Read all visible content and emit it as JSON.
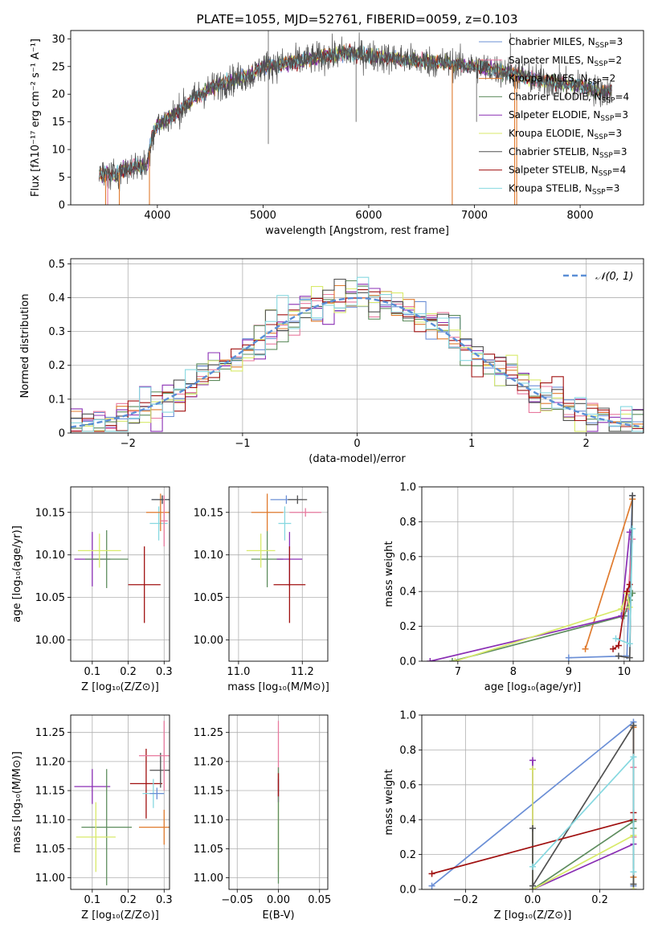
{
  "colors": {
    "chabrier_miles": "#6b8fd6",
    "salpeter_miles": "#e8799e",
    "kroupa_miles": "#e07b2e",
    "chabrier_elodie": "#5e8d5e",
    "salpeter_elodie": "#8a2fb4",
    "kroupa_elodie": "#d8ea6a",
    "chabrier_stelib": "#505050",
    "salpeter_stelib": "#a01010",
    "kroupa_stelib": "#86d8e0",
    "normal": "#5b8fd6",
    "grid": "#b0b0b0"
  },
  "chart_data": [
    {
      "id": "spectrum",
      "type": "line",
      "title": "PLATE=1055, MJD=52761, FIBERID=0059, z=0.103",
      "xlabel": "wavelength [Angstrom, rest frame]",
      "ylabel": "Flux [fλ10⁻¹⁷ erg cm⁻² s⁻¹ A⁻¹]",
      "xlim": [
        3180,
        8600
      ],
      "ylim": [
        0,
        31.5
      ],
      "xticks": [
        4000,
        5000,
        6000,
        7000,
        8000
      ],
      "yticks": [
        0,
        5,
        10,
        15,
        20,
        25,
        30
      ],
      "grid": false,
      "legend_position": "upper right",
      "legend": [
        {
          "label": "Chabrier MILES, N",
          "sub": "SSP",
          "tail": "=3",
          "color_key": "chabrier_miles"
        },
        {
          "label": "Salpeter MILES, N",
          "sub": "SSP",
          "tail": "=2",
          "color_key": "salpeter_miles"
        },
        {
          "label": "Kroupa MILES, N",
          "sub": "SSP",
          "tail": "=2",
          "color_key": "kroupa_miles"
        },
        {
          "label": "Chabrier ELODIE, N",
          "sub": "SSP",
          "tail": "=4",
          "color_key": "chabrier_elodie"
        },
        {
          "label": "Salpeter ELODIE, N",
          "sub": "SSP",
          "tail": "=3",
          "color_key": "salpeter_elodie"
        },
        {
          "label": "Kroupa ELODIE, N",
          "sub": "SSP",
          "tail": "=3",
          "color_key": "kroupa_elodie"
        },
        {
          "label": "Chabrier STELIB, N",
          "sub": "SSP",
          "tail": "=3",
          "color_key": "chabrier_stelib"
        },
        {
          "label": "Salpeter STELIB, N",
          "sub": "SSP",
          "tail": "=4",
          "color_key": "salpeter_stelib"
        },
        {
          "label": "Kroupa STELIB, N",
          "sub": "SSP",
          "tail": "=3",
          "color_key": "kroupa_stelib"
        }
      ],
      "continuum": {
        "x": [
          3450,
          3600,
          3700,
          3800,
          3900,
          3950,
          4000,
          4100,
          4200,
          4300,
          4400,
          4500,
          4700,
          4900,
          5000,
          5200,
          5500,
          5800,
          6000,
          6200,
          6500,
          6800,
          7000,
          7200,
          7400,
          7600,
          7800,
          8000,
          8200,
          8300
        ],
        "y": [
          5.5,
          5.5,
          6.5,
          7,
          7,
          12.5,
          14.5,
          15.5,
          17,
          18.5,
          20,
          21,
          22.5,
          23.5,
          25,
          25.5,
          26.5,
          27.5,
          27,
          26.5,
          26,
          25.5,
          25,
          24.5,
          23.5,
          22.5,
          22,
          21.5,
          20.5,
          20.5
        ]
      },
      "noisy_series": "chabrier_stelib",
      "noise_amplitude": 1.4,
      "model_series": [
        "chabrier_miles",
        "salpeter_miles",
        "kroupa_miles",
        "chabrier_elodie",
        "salpeter_elodie",
        "kroupa_elodie",
        "salpeter_stelib",
        "kroupa_stelib"
      ],
      "drops": [
        {
          "x": 3510,
          "series": "kroupa_miles"
        },
        {
          "x": 3530,
          "series": "salpeter_miles"
        },
        {
          "x": 3640,
          "series": "kroupa_miles"
        },
        {
          "x": 3925,
          "series": "kroupa_miles"
        },
        {
          "x": 6790,
          "series": "kroupa_miles"
        },
        {
          "x": 7380,
          "series": "kroupa_miles"
        },
        {
          "x": 7400,
          "series": "kroupa_miles"
        }
      ],
      "spikes": [
        {
          "x": 5050,
          "low": 11,
          "high": 31.5
        },
        {
          "x": 5880,
          "low": 15,
          "high": 28
        },
        {
          "x": 7020,
          "low": 15,
          "high": 26
        },
        {
          "x": 7340,
          "low": 22,
          "high": 31
        }
      ]
    },
    {
      "id": "residual_hist",
      "type": "histogram",
      "xlabel": "(data-model)/error",
      "ylabel": "Normed distribution",
      "xlim": [
        -2.5,
        2.5
      ],
      "ylim": [
        0,
        0.515
      ],
      "xticks": [
        -2,
        -1,
        0,
        1,
        2
      ],
      "yticks": [
        0,
        0.1,
        0.2,
        0.3,
        0.4,
        0.5
      ],
      "grid": true,
      "bin_width": 0.1,
      "bin_start": -2.5,
      "noise_amplitude": 0.04,
      "legend_position": "upper right",
      "legend": [
        {
          "label": "𝒩(0, 1)",
          "color_key": "normal",
          "style": "dashed"
        }
      ],
      "series_keys": [
        "chabrier_miles",
        "salpeter_miles",
        "kroupa_miles",
        "chabrier_elodie",
        "salpeter_elodie",
        "kroupa_elodie",
        "chabrier_stelib",
        "salpeter_stelib",
        "kroupa_stelib"
      ]
    },
    {
      "id": "age_vs_Z",
      "type": "errorbar",
      "xlabel": "Z [log₁₀(Z/Z⊙)]",
      "ylabel": "age  [log₁₀(age/yr)]",
      "xlim": [
        0.04,
        0.315
      ],
      "ylim": [
        9.975,
        10.18
      ],
      "xticks": [
        0.1,
        0.2,
        0.3
      ],
      "xtick_labels": [
        "0.1",
        "0.2",
        "0.3"
      ],
      "yticks": [
        10.0,
        10.05,
        10.1,
        10.15
      ],
      "ytick_labels": [
        "10.00",
        "10.05",
        "10.10",
        "10.15"
      ],
      "grid": true,
      "points": [
        {
          "key": "salpeter_elodie",
          "x": 0.1,
          "y": 10.095,
          "xerr": 0.05,
          "yerr": 0.032
        },
        {
          "key": "chabrier_elodie",
          "x": 0.14,
          "y": 10.095,
          "xerr": 0.06,
          "yerr": 0.034
        },
        {
          "key": "kroupa_elodie",
          "x": 0.12,
          "y": 10.105,
          "xerr": 0.06,
          "yerr": 0.02
        },
        {
          "key": "salpeter_stelib",
          "x": 0.245,
          "y": 10.065,
          "xerr": 0.045,
          "yerr": 0.045
        },
        {
          "key": "kroupa_stelib",
          "x": 0.285,
          "y": 10.137,
          "xerr": 0.025,
          "yerr": 0.02
        },
        {
          "key": "kroupa_miles",
          "x": 0.29,
          "y": 10.15,
          "xerr": 0.04,
          "yerr": 0.022
        },
        {
          "key": "chabrier_miles",
          "x": 0.295,
          "y": 10.165,
          "xerr": 0.03,
          "yerr": 0.005
        },
        {
          "key": "chabrier_stelib",
          "x": 0.295,
          "y": 10.165,
          "xerr": 0.03,
          "yerr": 0.005
        },
        {
          "key": "salpeter_miles",
          "x": 0.3,
          "y": 10.14,
          "xerr": 0.01,
          "yerr": 0.03
        }
      ]
    },
    {
      "id": "age_vs_mass",
      "type": "errorbar",
      "xlabel": "mass [log₁₀(M/M⊙)]",
      "ylabel": "",
      "xlim": [
        10.97,
        11.28
      ],
      "ylim": [
        9.975,
        10.18
      ],
      "xticks": [
        11.0,
        11.2
      ],
      "xtick_labels": [
        "11.0",
        "11.2"
      ],
      "yticks": [
        10.0,
        10.05,
        10.1,
        10.15
      ],
      "ytick_labels": [
        "10.00",
        "10.05",
        "10.10",
        "10.15"
      ],
      "grid": true,
      "points": [
        {
          "key": "chabrier_elodie",
          "x": 11.09,
          "y": 10.095,
          "xerr": 0.05,
          "yerr": 0.033
        },
        {
          "key": "kroupa_elodie",
          "x": 11.07,
          "y": 10.105,
          "xerr": 0.045,
          "yerr": 0.02
        },
        {
          "key": "salpeter_elodie",
          "x": 11.16,
          "y": 10.095,
          "xerr": 0.04,
          "yerr": 0.032
        },
        {
          "key": "salpeter_stelib",
          "x": 11.16,
          "y": 10.065,
          "xerr": 0.05,
          "yerr": 0.045
        },
        {
          "key": "kroupa_stelib",
          "x": 11.145,
          "y": 10.137,
          "xerr": 0.02,
          "yerr": 0.02
        },
        {
          "key": "kroupa_miles",
          "x": 11.09,
          "y": 10.15,
          "xerr": 0.05,
          "yerr": 0.022
        },
        {
          "key": "chabrier_miles",
          "x": 11.15,
          "y": 10.165,
          "xerr": 0.05,
          "yerr": 0.005
        },
        {
          "key": "chabrier_stelib",
          "x": 11.185,
          "y": 10.165,
          "xerr": 0.03,
          "yerr": 0.005
        },
        {
          "key": "salpeter_miles",
          "x": 11.21,
          "y": 10.15,
          "xerr": 0.05,
          "yerr": 0.005
        }
      ]
    },
    {
      "id": "massweight_vs_age",
      "type": "line",
      "xlabel": "age  [log₁₀(age/yr)]",
      "ylabel": "mass weight",
      "xlim": [
        6.35,
        10.35
      ],
      "ylim": [
        0,
        1.0
      ],
      "xticks": [
        7,
        8,
        9,
        10
      ],
      "yticks": [
        0,
        0.2,
        0.4,
        0.6,
        0.8,
        1.0
      ],
      "ytick_labels": [
        "0.0",
        "0.2",
        "0.4",
        "0.6",
        "0.8",
        "1.0"
      ],
      "grid": true,
      "series": [
        {
          "key": "chabrier_miles",
          "x": [
            9.0,
            10.05,
            10.15
          ],
          "y": [
            0.02,
            0.03,
            0.95
          ]
        },
        {
          "key": "salpeter_miles",
          "x": [
            10.05,
            10.15
          ],
          "y": [
            0.3,
            0.7
          ]
        },
        {
          "key": "kroupa_miles",
          "x": [
            9.3,
            10.15
          ],
          "y": [
            0.07,
            0.93
          ]
        },
        {
          "key": "chabrier_elodie",
          "x": [
            6.9,
            10.0,
            10.1,
            10.15
          ],
          "y": [
            0.0,
            0.26,
            0.35,
            0.39
          ]
        },
        {
          "key": "salpeter_elodie",
          "x": [
            6.5,
            9.95,
            10.1
          ],
          "y": [
            0.0,
            0.26,
            0.74
          ]
        },
        {
          "key": "kroupa_elodie",
          "x": [
            6.95,
            9.95,
            10.05,
            10.1
          ],
          "y": [
            0.0,
            0.3,
            0.39,
            0.31
          ]
        },
        {
          "key": "chabrier_stelib",
          "x": [
            9.9,
            10.1,
            10.15
          ],
          "y": [
            0.03,
            0.02,
            0.95
          ]
        },
        {
          "key": "salpeter_stelib",
          "x": [
            9.8,
            9.9,
            10.05,
            10.1
          ],
          "y": [
            0.07,
            0.09,
            0.4,
            0.44
          ]
        },
        {
          "key": "kroupa_stelib",
          "x": [
            9.85,
            10.1,
            10.15
          ],
          "y": [
            0.13,
            0.1,
            0.76
          ]
        }
      ]
    },
    {
      "id": "mass_vs_Z",
      "type": "errorbar",
      "xlabel": "Z [log₁₀(Z/Z⊙)]",
      "ylabel": "mass [log₁₀(M/M⊙)]",
      "xlim": [
        0.04,
        0.315
      ],
      "ylim": [
        10.98,
        11.28
      ],
      "xticks": [
        0.1,
        0.2,
        0.3
      ],
      "xtick_labels": [
        "0.1",
        "0.2",
        "0.3"
      ],
      "yticks": [
        11.0,
        11.05,
        11.1,
        11.15,
        11.2,
        11.25
      ],
      "ytick_labels": [
        "11.00",
        "11.05",
        "11.10",
        "11.15",
        "11.20",
        "11.25"
      ],
      "grid": true,
      "points": [
        {
          "key": "salpeter_elodie",
          "x": 0.1,
          "y": 11.157,
          "xerr": 0.05,
          "yerr": 0.03
        },
        {
          "key": "chabrier_elodie",
          "x": 0.14,
          "y": 11.087,
          "xerr": 0.07,
          "yerr": 0.1
        },
        {
          "key": "kroupa_elodie",
          "x": 0.11,
          "y": 11.07,
          "xerr": 0.055,
          "yerr": 0.06
        },
        {
          "key": "salpeter_stelib",
          "x": 0.25,
          "y": 11.162,
          "xerr": 0.045,
          "yerr": 0.06
        },
        {
          "key": "kroupa_stelib",
          "x": 0.27,
          "y": 11.145,
          "xerr": 0.03,
          "yerr": 0.025
        },
        {
          "key": "chabrier_miles",
          "x": 0.28,
          "y": 11.145,
          "xerr": 0.02,
          "yerr": 0.01
        },
        {
          "key": "chabrier_stelib",
          "x": 0.29,
          "y": 11.185,
          "xerr": 0.03,
          "yerr": 0.03
        },
        {
          "key": "salpeter_miles",
          "x": 0.3,
          "y": 11.21,
          "xerr": 0.07,
          "yerr": 0.06
        },
        {
          "key": "kroupa_miles",
          "x": 0.3,
          "y": 11.087,
          "xerr": 0.07,
          "yerr": 0.03
        }
      ]
    },
    {
      "id": "mass_vs_ebv",
      "type": "errorbar",
      "xlabel": "E(B-V)",
      "ylabel": "",
      "xlim": [
        -0.06,
        0.06
      ],
      "ylim": [
        10.98,
        11.28
      ],
      "xticks": [
        -0.05,
        0.0,
        0.05
      ],
      "xtick_labels": [
        "−0.05",
        "0.00",
        "0.05"
      ],
      "yticks": [
        11.0,
        11.05,
        11.1,
        11.15,
        11.2,
        11.25
      ],
      "ytick_labels": [
        "11.00",
        "11.05",
        "11.10",
        "11.15",
        "11.20",
        "11.25"
      ],
      "grid": true,
      "points": [
        {
          "key": "salpeter_miles",
          "x": 0.0,
          "y": 11.2,
          "xerr": 0,
          "yerr": 0.07
        },
        {
          "key": "salpeter_elodie",
          "x": 0.0,
          "y": 11.15,
          "xerr": 0,
          "yerr": 0.02
        },
        {
          "key": "kroupa_elodie",
          "x": 0.0,
          "y": 11.07,
          "xerr": 0,
          "yerr": 0.06
        },
        {
          "key": "chabrier_elodie",
          "x": 0.0,
          "y": 11.09,
          "xerr": 0,
          "yerr": 0.1
        },
        {
          "key": "salpeter_stelib",
          "x": 0.0,
          "y": 11.16,
          "xerr": 0,
          "yerr": 0.02
        }
      ]
    },
    {
      "id": "massweight_vs_Z",
      "type": "line",
      "xlabel": "Z [log₁₀(Z/Z⊙)]",
      "ylabel": "mass weight",
      "xlim": [
        -0.33,
        0.33
      ],
      "ylim": [
        0,
        1.0
      ],
      "xticks": [
        -0.2,
        0.0,
        0.2
      ],
      "xtick_labels": [
        "−0.2",
        "0.0",
        "0.2"
      ],
      "yticks": [
        0,
        0.2,
        0.4,
        0.6,
        0.8,
        1.0
      ],
      "ytick_labels": [
        "0.0",
        "0.2",
        "0.4",
        "0.6",
        "0.8",
        "1.0"
      ],
      "grid": true,
      "series": [
        {
          "key": "chabrier_miles",
          "x": [
            -0.3,
            0.3,
            0.3
          ],
          "y": [
            0.02,
            0.96,
            0.02
          ]
        },
        {
          "key": "salpeter_miles",
          "x": [
            0.3,
            0.3
          ],
          "y": [
            0.3,
            0.7
          ]
        },
        {
          "key": "kroupa_miles",
          "x": [
            0.3,
            0.3
          ],
          "y": [
            0.07,
            0.93
          ]
        },
        {
          "key": "chabrier_elodie",
          "x": [
            0.0,
            0.3,
            0.3
          ],
          "y": [
            0.0,
            0.39,
            0.35
          ]
        },
        {
          "key": "salpeter_elodie",
          "x": [
            0.0,
            0.0,
            0.3,
            0.3
          ],
          "y": [
            0.74,
            0.0,
            0.26,
            0.0
          ]
        },
        {
          "key": "kroupa_elodie",
          "x": [
            0.0,
            0.0,
            0.3,
            0.3
          ],
          "y": [
            0.69,
            0.0,
            0.31,
            0.0
          ]
        },
        {
          "key": "chabrier_stelib",
          "x": [
            0.0,
            0.0,
            0.3,
            0.3
          ],
          "y": [
            0.35,
            0.02,
            0.94,
            0.03
          ]
        },
        {
          "key": "salpeter_stelib",
          "x": [
            -0.3,
            0.3,
            0.3
          ],
          "y": [
            0.09,
            0.4,
            0.44
          ]
        },
        {
          "key": "kroupa_stelib",
          "x": [
            0.0,
            0.3,
            0.3
          ],
          "y": [
            0.13,
            0.76,
            0.1
          ]
        }
      ]
    }
  ]
}
